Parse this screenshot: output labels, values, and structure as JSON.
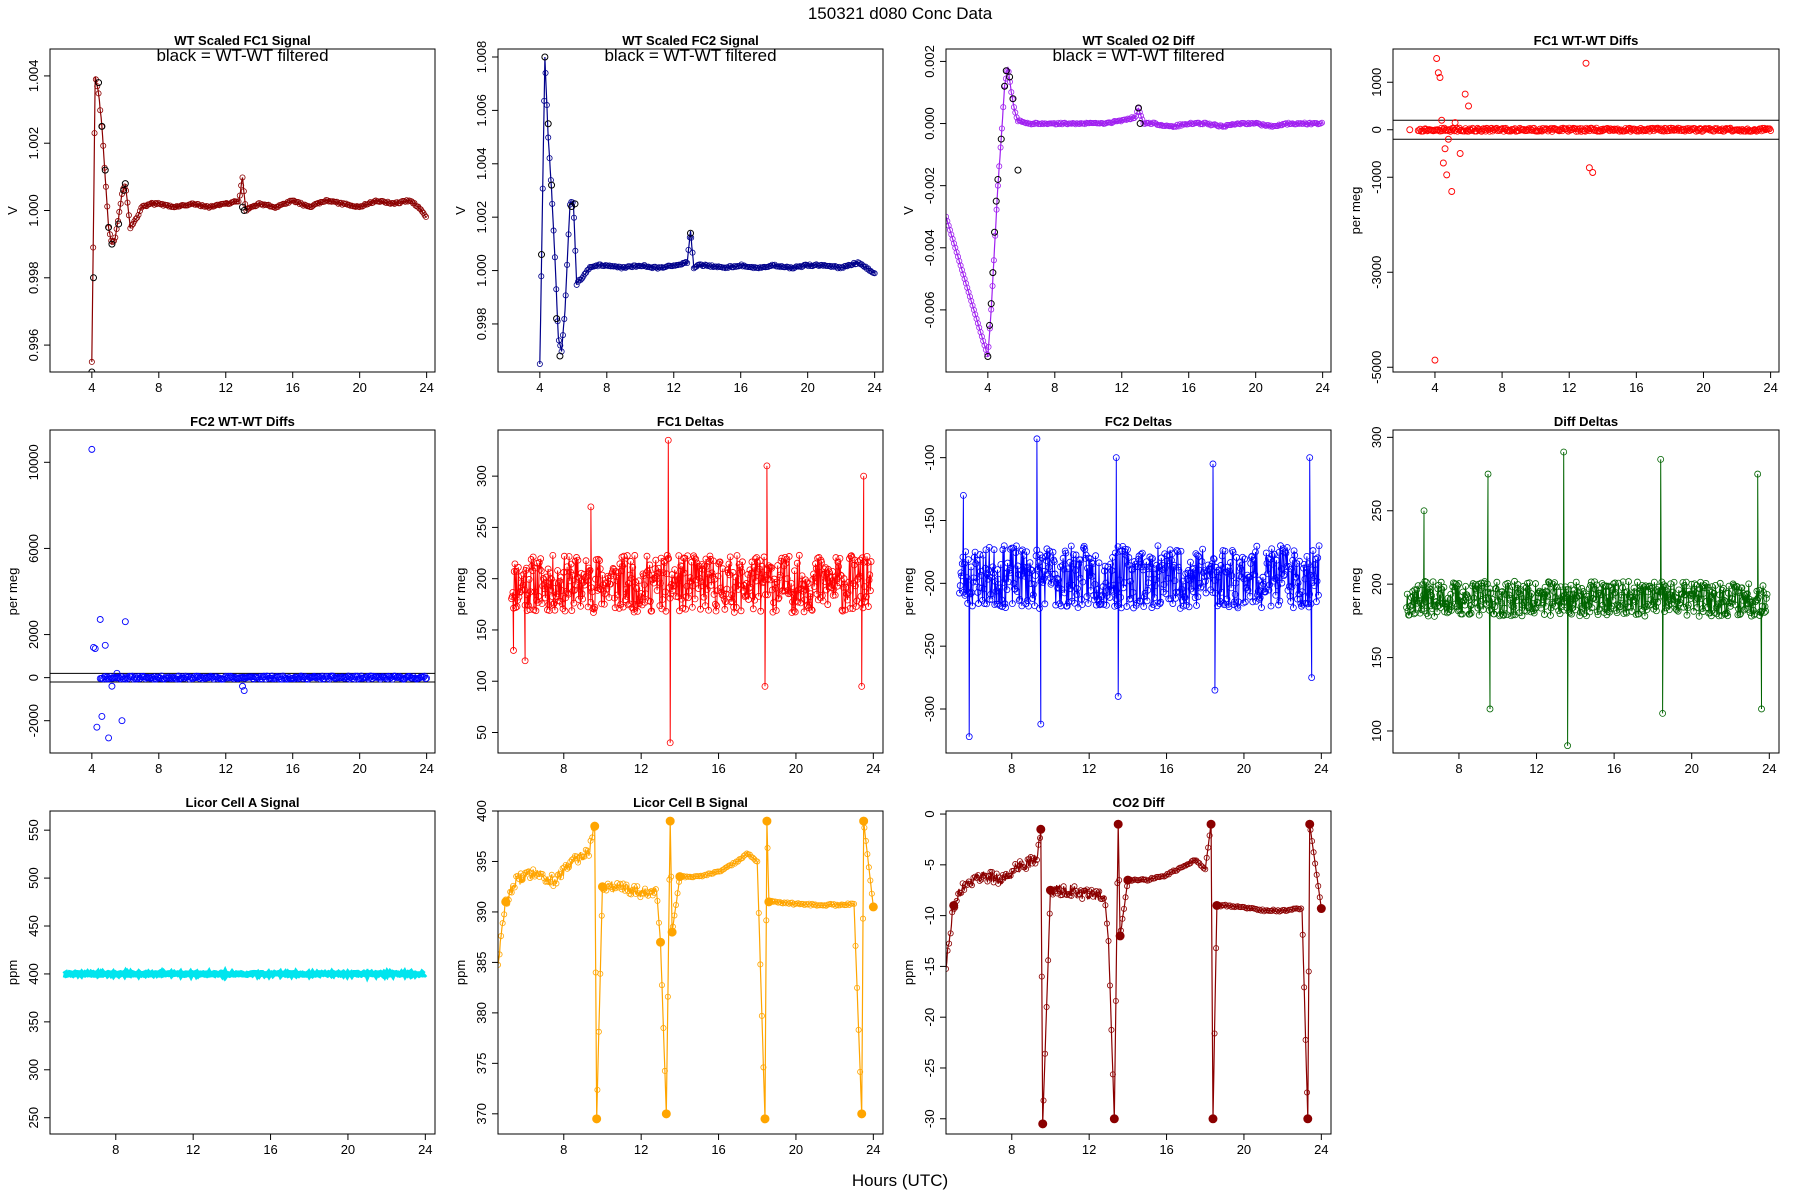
{
  "figure": {
    "title": "150321    d080    Conc Data",
    "xlabel": "Hours (UTC)"
  },
  "chart_data": [
    {
      "type": "line",
      "title": "WT Scaled FC1 Signal",
      "ylabel": "V",
      "note": "black = WT-WT filtered",
      "color": "#8b0000",
      "spike_color": "#e0102a",
      "xlim": [
        1.5,
        24.5
      ],
      "ylim": [
        0.9952,
        1.0048
      ],
      "xticks": [
        4,
        8,
        12,
        16,
        20,
        24
      ],
      "yticks": [
        0.996,
        0.998,
        1.0,
        1.002,
        1.004
      ],
      "yticklabels": [
        "0.996",
        "0.998",
        "1.000",
        "1.002",
        "1.004"
      ],
      "x": [
        4.0,
        4.2,
        4.4,
        4.5,
        4.6,
        4.8,
        5.0,
        5.2,
        5.4,
        5.6,
        5.8,
        6.0,
        6.3,
        6.7,
        7.0,
        7.5,
        8,
        9,
        10,
        11,
        12,
        12.8,
        13.0,
        13.2,
        13.5,
        14,
        15,
        16,
        17,
        18,
        19,
        20,
        21,
        22,
        23,
        23.5,
        24
      ],
      "y": [
        0.9955,
        1.004,
        1.0035,
        1.003,
        1.0025,
        1.001,
        0.9995,
        0.999,
        0.9992,
        0.9998,
        1.0005,
        1.0008,
        0.9995,
        0.9998,
        1.0001,
        1.0002,
        1.0002,
        1.0001,
        1.0002,
        1.0001,
        1.0002,
        1.0003,
        1.001,
        1.0,
        1.0001,
        1.0002,
        1.0001,
        1.0003,
        1.0001,
        1.0003,
        1.0002,
        1.0001,
        1.0003,
        1.0002,
        1.0003,
        1.0001,
        0.9998
      ],
      "black_x": [
        4.0,
        4.1,
        4.4,
        4.6,
        4.8,
        5.0,
        5.2,
        5.6,
        5.9,
        6.0,
        13.0,
        13.1
      ],
      "black_y": [
        0.9952,
        0.998,
        1.0038,
        1.0025,
        1.0012,
        0.9995,
        0.999,
        0.9996,
        1.0006,
        1.0008,
        1.0001,
        1.0
      ]
    },
    {
      "type": "line",
      "title": "WT Scaled FC2 Signal",
      "ylabel": "V",
      "note": "black = WT-WT filtered",
      "color": "#00008b",
      "spike_color": "#1010ff",
      "xlim": [
        1.5,
        24.5
      ],
      "ylim": [
        0.9962,
        1.0083
      ],
      "xticks": [
        4,
        8,
        12,
        16,
        20,
        24
      ],
      "yticks": [
        0.998,
        1.0,
        1.002,
        1.004,
        1.006,
        1.008
      ],
      "yticklabels": [
        "0.998",
        "1.000",
        "1.002",
        "1.004",
        "1.006",
        "1.008"
      ],
      "x": [
        4.0,
        4.3,
        4.5,
        4.7,
        4.9,
        5.1,
        5.3,
        5.5,
        5.8,
        6.0,
        6.2,
        6.6,
        7.0,
        7.5,
        8,
        9,
        10,
        11,
        12,
        12.8,
        13.0,
        13.2,
        13.5,
        14,
        15,
        16,
        17,
        18,
        19,
        20,
        21,
        22,
        23,
        23.5,
        24
      ],
      "y": [
        0.9965,
        1.008,
        1.005,
        1.003,
        1.0005,
        0.9975,
        0.997,
        0.9985,
        1.0025,
        1.0026,
        0.9995,
        0.9998,
        1.0001,
        1.0002,
        1.0002,
        1.0001,
        1.0002,
        1.0001,
        1.0002,
        1.0003,
        1.0015,
        1.0001,
        1.0002,
        1.0002,
        1.0001,
        1.0002,
        1.0001,
        1.0002,
        1.0001,
        1.0002,
        1.0002,
        1.0001,
        1.0003,
        1.0001,
        0.9999
      ],
      "black_x": [
        4.1,
        4.3,
        4.5,
        4.7,
        5.0,
        5.2,
        5.9,
        6.1,
        13.0
      ],
      "black_y": [
        1.0006,
        1.008,
        1.0055,
        1.0032,
        0.9982,
        0.9968,
        1.0024,
        1.0025,
        1.0014
      ]
    },
    {
      "type": "line",
      "title": "WT Scaled O2 Diff",
      "ylabel": "V",
      "note": "black = WT-WT filtered",
      "color": "#a020f0",
      "spike_color": "#ee82ee",
      "xlim": [
        1.5,
        24.5
      ],
      "ylim": [
        -0.008,
        0.0024
      ],
      "xticks": [
        4,
        8,
        12,
        16,
        20,
        24
      ],
      "yticks": [
        -0.006,
        -0.004,
        -0.002,
        0.0,
        0.002
      ],
      "yticklabels": [
        "-0.006",
        "-0.004",
        "-0.002",
        "0.000",
        "0.002"
      ],
      "x": [
        1.5,
        4.0,
        4.2,
        4.4,
        4.6,
        4.8,
        5.0,
        5.2,
        5.4,
        5.6,
        5.8,
        6.2,
        7,
        8,
        9,
        10,
        11,
        12,
        12.8,
        13.0,
        13.3,
        14,
        15,
        16,
        17,
        18,
        19,
        20,
        21,
        22,
        23,
        24
      ],
      "y": [
        -0.003,
        -0.0075,
        -0.006,
        -0.004,
        -0.002,
        -0.0005,
        0.0012,
        0.0018,
        0.001,
        0.0004,
        0.0001,
        0.0,
        0.0,
        0.0,
        0.0,
        0.0,
        0.0,
        0.0001,
        0.0002,
        0.0005,
        0.0,
        0.0,
        -0.0001,
        0.0,
        0.0,
        -0.0001,
        0.0,
        0.0,
        -0.0001,
        0.0,
        0.0,
        0.0
      ],
      "black_x": [
        4.0,
        4.1,
        4.2,
        4.3,
        4.4,
        4.5,
        4.6,
        4.8,
        5.0,
        5.1,
        5.3,
        5.5,
        5.8,
        13.0,
        13.1
      ],
      "black_y": [
        -0.0075,
        -0.0065,
        -0.0058,
        -0.0048,
        -0.0035,
        -0.0025,
        -0.0018,
        -0.0005,
        0.0012,
        0.0017,
        0.0015,
        0.0008,
        -0.0015,
        0.0005,
        0.0
      ]
    },
    {
      "type": "scatter",
      "title": "FC1 WT-WT Diffs",
      "ylabel": "per meg",
      "color": "#ff0000",
      "xlim": [
        1.5,
        24.5
      ],
      "ylim": [
        -5100,
        1700
      ],
      "xticks": [
        4,
        8,
        12,
        16,
        20,
        24
      ],
      "yticks": [
        -5000,
        -3000,
        -1000,
        0,
        1000
      ],
      "yticklabels": [
        "-5000",
        "-3000",
        "-1000",
        "0",
        "1000"
      ],
      "hlines": [
        200,
        -200
      ],
      "x": [
        2.5,
        4.0,
        4.1,
        4.2,
        4.3,
        4.4,
        4.5,
        4.6,
        4.7,
        4.8,
        5.0,
        5.2,
        5.5,
        5.8,
        6.0,
        13.0,
        13.2,
        13.4
      ],
      "y": [
        0,
        -4850,
        1500,
        1200,
        1100,
        200,
        -700,
        -400,
        -950,
        -200,
        -1300,
        150,
        -500,
        750,
        500,
        1400,
        -800,
        -900
      ],
      "band_x": [
        3.0,
        24.0
      ],
      "band_y": [
        0,
        0
      ]
    },
    {
      "type": "scatter",
      "title": "FC2 WT-WT Diffs",
      "ylabel": "per meg",
      "color": "#0000ff",
      "xlim": [
        1.5,
        24.5
      ],
      "ylim": [
        -3500,
        11500
      ],
      "xticks": [
        4,
        8,
        12,
        16,
        20,
        24
      ],
      "yticks": [
        -2000,
        0,
        2000,
        6000,
        10000
      ],
      "yticklabels": [
        "-2000",
        "0",
        "2000",
        "6000",
        "10000"
      ],
      "hlines": [
        200,
        -200
      ],
      "x": [
        4.0,
        4.1,
        4.2,
        4.3,
        4.5,
        4.6,
        4.8,
        5.0,
        5.2,
        5.5,
        5.8,
        6.0,
        13.0,
        13.1
      ],
      "y": [
        10600,
        1400,
        1350,
        -2300,
        2700,
        -1800,
        1500,
        -2800,
        -400,
        200,
        -2000,
        2600,
        -400,
        -600
      ],
      "band_x": [
        4.5,
        24.0
      ],
      "band_y": [
        0,
        0
      ]
    },
    {
      "type": "line",
      "title": "FC1 Deltas",
      "ylabel": "per meg",
      "color": "#ff0000",
      "xlim": [
        4.6,
        24.5
      ],
      "ylim": [
        30,
        345
      ],
      "xticks": [
        8,
        12,
        16,
        20,
        24
      ],
      "yticks": [
        50,
        100,
        150,
        200,
        250,
        300
      ],
      "yticklabels": [
        "50",
        "100",
        "150",
        "200",
        "250",
        "300"
      ],
      "base": 195,
      "noise": 28,
      "x_start": 5.3,
      "x_end": 23.9,
      "seed": 11,
      "spikes": [
        [
          5.4,
          130
        ],
        [
          6.0,
          120
        ],
        [
          9.4,
          270
        ],
        [
          13.4,
          335
        ],
        [
          13.5,
          40
        ],
        [
          18.4,
          95
        ],
        [
          18.5,
          310
        ],
        [
          23.4,
          95
        ],
        [
          23.5,
          300
        ]
      ]
    },
    {
      "type": "line",
      "title": "FC2 Deltas",
      "ylabel": "per meg",
      "color": "#0000ff",
      "xlim": [
        4.6,
        24.5
      ],
      "ylim": [
        -335,
        -78
      ],
      "xticks": [
        8,
        12,
        16,
        20,
        24
      ],
      "yticks": [
        -300,
        -250,
        -200,
        -150,
        -100
      ],
      "yticklabels": [
        "-300",
        "-250",
        "-200",
        "-150",
        "-100"
      ],
      "base": -195,
      "noise": 25,
      "x_start": 5.3,
      "x_end": 23.9,
      "seed": 23,
      "spikes": [
        [
          5.5,
          -130
        ],
        [
          5.8,
          -322
        ],
        [
          9.3,
          -85
        ],
        [
          9.5,
          -312
        ],
        [
          13.4,
          -100
        ],
        [
          13.5,
          -290
        ],
        [
          18.4,
          -105
        ],
        [
          18.5,
          -285
        ],
        [
          23.4,
          -100
        ],
        [
          23.5,
          -275
        ]
      ]
    },
    {
      "type": "line",
      "title": "Diff Deltas",
      "ylabel": "per meg",
      "color": "#006400",
      "xlim": [
        4.6,
        24.5
      ],
      "ylim": [
        85,
        305
      ],
      "xticks": [
        8,
        12,
        16,
        20,
        24
      ],
      "yticks": [
        100,
        150,
        200,
        250,
        300
      ],
      "yticklabels": [
        "100",
        "150",
        "200",
        "250",
        "300"
      ],
      "base": 190,
      "noise": 12,
      "x_start": 5.3,
      "x_end": 23.9,
      "seed": 37,
      "spikes": [
        [
          6.2,
          250
        ],
        [
          9.5,
          275
        ],
        [
          9.6,
          115
        ],
        [
          13.4,
          290
        ],
        [
          13.6,
          90
        ],
        [
          18.4,
          285
        ],
        [
          18.5,
          112
        ],
        [
          23.4,
          275
        ],
        [
          23.6,
          115
        ]
      ]
    },
    {
      "type": "line",
      "title": "Licor Cell A Signal",
      "ylabel": "ppm",
      "color": "#00e5ee",
      "xlim": [
        4.6,
        24.5
      ],
      "ylim": [
        233,
        570
      ],
      "xticks": [
        8,
        12,
        16,
        20,
        24
      ],
      "yticks": [
        250,
        300,
        350,
        400,
        450,
        500,
        550
      ],
      "yticklabels": [
        "250",
        "300",
        "350",
        "400",
        "450",
        "500",
        "550"
      ],
      "x": [
        5.3,
        24.0
      ],
      "y": [
        400,
        400
      ]
    },
    {
      "type": "line",
      "title": "Licor Cell B Signal",
      "ylabel": "ppm",
      "color": "#ffa500",
      "xlim": [
        4.6,
        24.5
      ],
      "ylim": [
        368,
        400
      ],
      "xticks": [
        8,
        12,
        16,
        20,
        24
      ],
      "yticks": [
        370,
        375,
        380,
        385,
        390,
        395,
        400
      ],
      "yticklabels": [
        "370",
        "375",
        "380",
        "385",
        "390",
        "395",
        "400"
      ],
      "x": [
        4.6,
        5.0,
        5.5,
        6.5,
        7.5,
        8.5,
        9.3,
        9.6,
        9.7,
        10.0,
        11.0,
        12.0,
        12.8,
        13.0,
        13.3,
        13.5,
        13.6,
        14.0,
        15.0,
        16.0,
        17.0,
        17.5,
        18.0,
        18.4,
        18.5,
        18.6,
        19.0,
        20.0,
        21.0,
        22.0,
        23.0,
        23.4,
        23.5,
        24.0
      ],
      "y": [
        385,
        391,
        393,
        394,
        393,
        395,
        396,
        398.5,
        369.5,
        392.5,
        392.5,
        392,
        392,
        387,
        370,
        399,
        388,
        393.5,
        393.5,
        394,
        395,
        395.8,
        395,
        369.5,
        399,
        391,
        391,
        390.8,
        390.7,
        390.7,
        390.8,
        370,
        399,
        390.5
      ],
      "noise_until": 12.5
    },
    {
      "type": "line",
      "title": "CO2 Diff",
      "ylabel": "ppm",
      "color": "#8b0000",
      "xlim": [
        4.6,
        24.5
      ],
      "ylim": [
        -31.5,
        0.3
      ],
      "xticks": [
        8,
        12,
        16,
        20,
        24
      ],
      "yticks": [
        -30,
        -25,
        -20,
        -15,
        -10,
        -5,
        0
      ],
      "yticklabels": [
        "-30",
        "-25",
        "-20",
        "-15",
        "-10",
        "-5",
        "0"
      ],
      "x": [
        4.6,
        5.0,
        5.5,
        6.5,
        7.5,
        8.5,
        9.3,
        9.5,
        9.6,
        10.0,
        11.0,
        12.0,
        12.8,
        13.0,
        13.3,
        13.5,
        13.6,
        14.0,
        15.0,
        16.0,
        17.0,
        17.5,
        18.0,
        18.3,
        18.4,
        18.6,
        19.0,
        20.0,
        21.0,
        22.0,
        23.0,
        23.3,
        23.4,
        24.0
      ],
      "y": [
        -15,
        -9,
        -7,
        -6,
        -6.5,
        -5,
        -4.5,
        -1.5,
        -30.5,
        -7.5,
        -7.5,
        -8,
        -8,
        -12.5,
        -30,
        -1,
        -12,
        -6.5,
        -6.5,
        -6,
        -5,
        -4.5,
        -5.5,
        -1,
        -30,
        -9,
        -9,
        -9.2,
        -9.5,
        -9.5,
        -9.3,
        -30,
        -1,
        -9.3
      ],
      "noise_until": 12.5
    }
  ]
}
